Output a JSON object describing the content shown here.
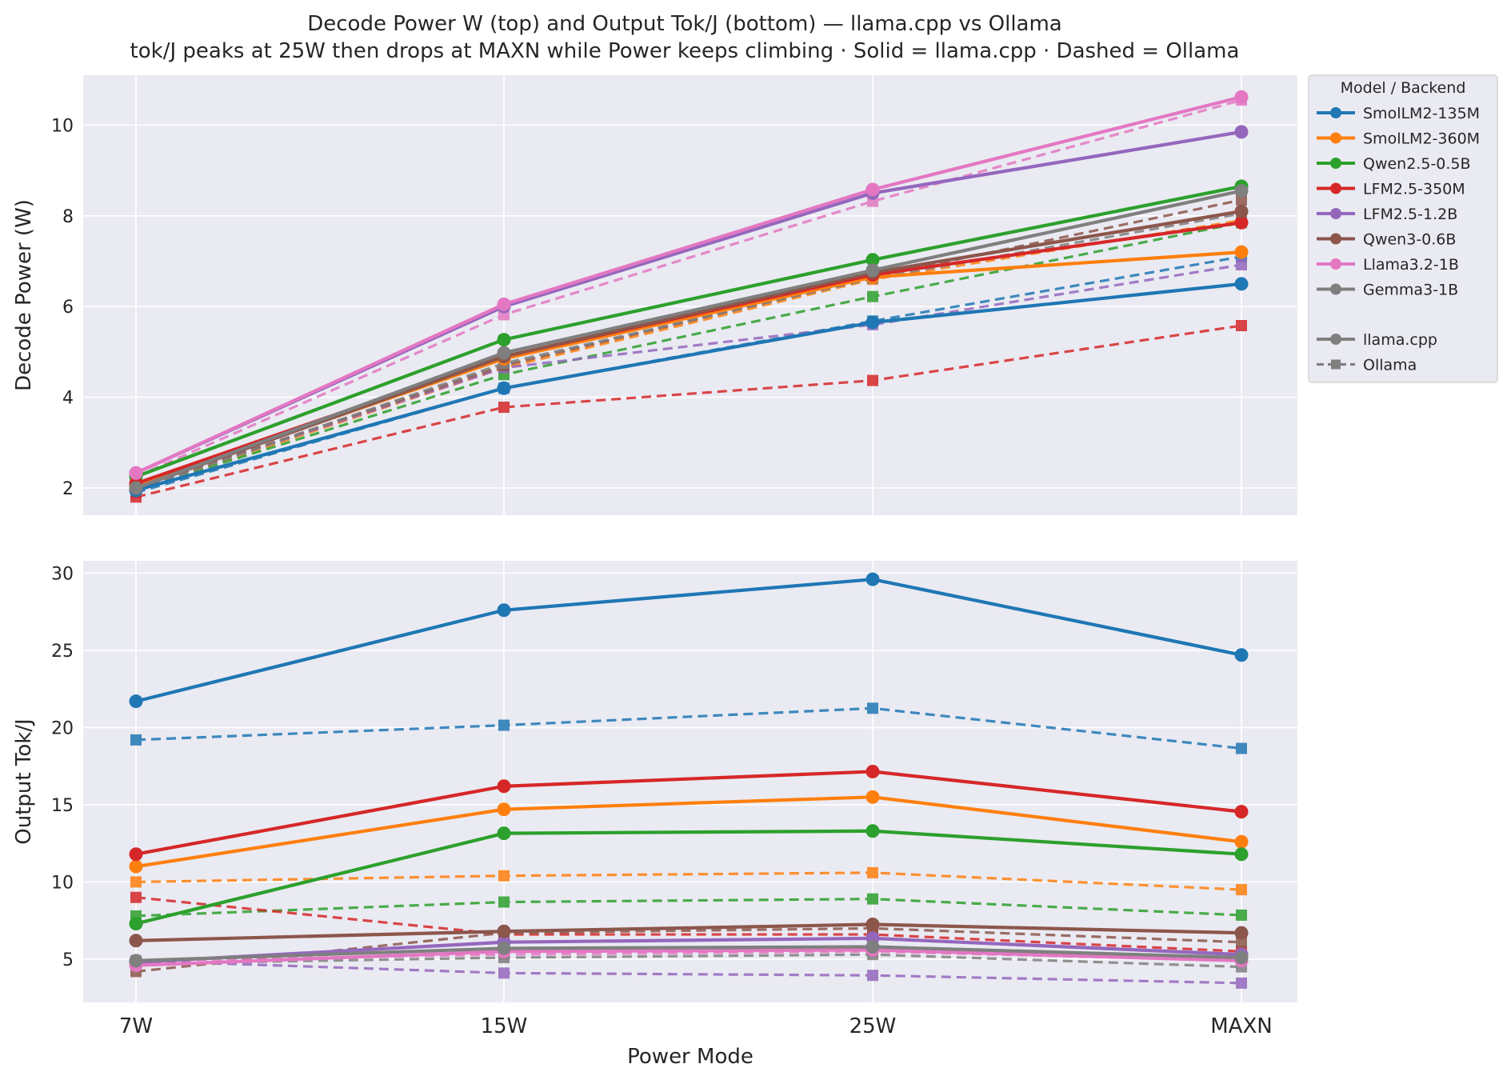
{
  "title": {
    "line1": "Decode Power W (top) and Output Tok/J (bottom) — llama.cpp vs Ollama",
    "line2": "tok/J peaks at 25W then drops at MAXN while Power keeps climbing  ·  Solid = llama.cpp  ·  Dashed = Ollama"
  },
  "legend": {
    "title": "Model  /  Backend",
    "placement": "outside-right",
    "models": [
      {
        "name": "SmolLM2-135M",
        "color": "#1f77b4"
      },
      {
        "name": "SmolLM2-360M",
        "color": "#ff7f0e"
      },
      {
        "name": "Qwen2.5-0.5B",
        "color": "#2ca02c"
      },
      {
        "name": "LFM2.5-350M",
        "color": "#d62728"
      },
      {
        "name": "LFM2.5-1.2B",
        "color": "#9467bd"
      },
      {
        "name": "Qwen3-0.6B",
        "color": "#8c564b"
      },
      {
        "name": "Llama3.2-1B",
        "color": "#e377c2"
      },
      {
        "name": "Gemma3-1B",
        "color": "#7f7f7f"
      }
    ],
    "backends": [
      {
        "name": "llama.cpp",
        "style": "solid",
        "marker": "circle",
        "color": "#7f7f7f"
      },
      {
        "name": "Ollama",
        "style": "dashed",
        "marker": "square",
        "color": "#7f7f7f"
      }
    ]
  },
  "chart_data": [
    {
      "type": "line",
      "panel": "top",
      "ylabel": "Decode Power (W)",
      "xlabel": "",
      "categories": [
        "7W",
        "15W",
        "25W",
        "MAXN"
      ],
      "ylim": [
        1.4,
        11.1
      ],
      "yticks": [
        2,
        4,
        6,
        8,
        10
      ],
      "grid": true,
      "series": [
        {
          "name": "SmolLM2-135M",
          "backend": "llama.cpp",
          "color": "#1f77b4",
          "values": [
            1.95,
            4.2,
            5.65,
            6.5
          ]
        },
        {
          "name": "SmolLM2-360M",
          "backend": "llama.cpp",
          "color": "#ff7f0e",
          "values": [
            2.05,
            4.85,
            6.65,
            7.2
          ]
        },
        {
          "name": "Qwen2.5-0.5B",
          "backend": "llama.cpp",
          "color": "#2ca02c",
          "values": [
            2.25,
            5.27,
            7.03,
            8.65
          ]
        },
        {
          "name": "LFM2.5-350M",
          "backend": "llama.cpp",
          "color": "#d62728",
          "values": [
            2.1,
            4.9,
            6.7,
            7.85
          ]
        },
        {
          "name": "LFM2.5-1.2B",
          "backend": "llama.cpp",
          "color": "#9467bd",
          "values": [
            2.33,
            6.0,
            8.5,
            9.85
          ]
        },
        {
          "name": "Qwen3-0.6B",
          "backend": "llama.cpp",
          "color": "#8c564b",
          "values": [
            2.0,
            4.9,
            6.75,
            8.1
          ]
        },
        {
          "name": "Llama3.2-1B",
          "backend": "llama.cpp",
          "color": "#e377c2",
          "values": [
            2.33,
            6.05,
            8.58,
            10.62
          ]
        },
        {
          "name": "Gemma3-1B",
          "backend": "llama.cpp",
          "color": "#7f7f7f",
          "values": [
            2.0,
            4.98,
            6.8,
            8.55
          ]
        },
        {
          "name": "SmolLM2-135M",
          "backend": "Ollama",
          "color": "#1f77b4",
          "values": [
            1.9,
            4.2,
            5.68,
            7.1
          ]
        },
        {
          "name": "SmolLM2-360M",
          "backend": "Ollama",
          "color": "#ff7f0e",
          "values": [
            1.95,
            4.65,
            6.6,
            7.9
          ]
        },
        {
          "name": "Qwen2.5-0.5B",
          "backend": "Ollama",
          "color": "#2ca02c",
          "values": [
            1.95,
            4.5,
            6.22,
            7.85
          ]
        },
        {
          "name": "LFM2.5-350M",
          "backend": "Ollama",
          "color": "#d62728",
          "values": [
            1.8,
            3.78,
            4.37,
            5.58
          ]
        },
        {
          "name": "LFM2.5-1.2B",
          "backend": "Ollama",
          "color": "#9467bd",
          "values": [
            2.0,
            4.65,
            5.6,
            6.92
          ]
        },
        {
          "name": "Qwen3-0.6B",
          "backend": "Ollama",
          "color": "#8c564b",
          "values": [
            2.0,
            4.7,
            6.65,
            8.35
          ]
        },
        {
          "name": "Llama3.2-1B",
          "backend": "Ollama",
          "color": "#e377c2",
          "values": [
            2.25,
            5.82,
            8.32,
            10.55
          ]
        },
        {
          "name": "Gemma3-1B",
          "backend": "Ollama",
          "color": "#7f7f7f",
          "values": [
            1.95,
            4.75,
            6.62,
            8.05
          ]
        }
      ]
    },
    {
      "type": "line",
      "panel": "bottom",
      "ylabel": "Output Tok/J",
      "xlabel": "Power Mode",
      "categories": [
        "7W",
        "15W",
        "25W",
        "MAXN"
      ],
      "ylim": [
        2.2,
        30.8
      ],
      "yticks": [
        5,
        10,
        15,
        20,
        25,
        30
      ],
      "grid": true,
      "series": [
        {
          "name": "SmolLM2-135M",
          "backend": "llama.cpp",
          "color": "#1f77b4",
          "values": [
            21.7,
            27.6,
            29.6,
            24.7
          ]
        },
        {
          "name": "SmolLM2-360M",
          "backend": "llama.cpp",
          "color": "#ff7f0e",
          "values": [
            11.0,
            14.7,
            15.5,
            12.6
          ]
        },
        {
          "name": "Qwen2.5-0.5B",
          "backend": "llama.cpp",
          "color": "#2ca02c",
          "values": [
            7.3,
            13.15,
            13.3,
            11.8
          ]
        },
        {
          "name": "LFM2.5-350M",
          "backend": "llama.cpp",
          "color": "#d62728",
          "values": [
            11.8,
            16.2,
            17.15,
            14.55
          ]
        },
        {
          "name": "LFM2.5-1.2B",
          "backend": "llama.cpp",
          "color": "#9467bd",
          "values": [
            4.8,
            6.1,
            6.35,
            5.3
          ]
        },
        {
          "name": "Qwen3-0.6B",
          "backend": "llama.cpp",
          "color": "#8c564b",
          "values": [
            6.2,
            6.8,
            7.25,
            6.7
          ]
        },
        {
          "name": "Llama3.2-1B",
          "backend": "llama.cpp",
          "color": "#e377c2",
          "values": [
            4.6,
            5.5,
            5.6,
            4.9
          ]
        },
        {
          "name": "Gemma3-1B",
          "backend": "llama.cpp",
          "color": "#7f7f7f",
          "values": [
            4.9,
            5.7,
            5.8,
            5.1
          ]
        },
        {
          "name": "SmolLM2-135M",
          "backend": "Ollama",
          "color": "#1f77b4",
          "values": [
            19.2,
            20.15,
            21.25,
            18.65
          ]
        },
        {
          "name": "SmolLM2-360M",
          "backend": "Ollama",
          "color": "#ff7f0e",
          "values": [
            10.0,
            10.4,
            10.6,
            9.5
          ]
        },
        {
          "name": "Qwen2.5-0.5B",
          "backend": "Ollama",
          "color": "#2ca02c",
          "values": [
            7.8,
            8.7,
            8.9,
            7.85
          ]
        },
        {
          "name": "LFM2.5-350M",
          "backend": "Ollama",
          "color": "#d62728",
          "values": [
            9.0,
            6.6,
            6.6,
            5.5
          ]
        },
        {
          "name": "LFM2.5-1.2B",
          "backend": "Ollama",
          "color": "#9467bd",
          "values": [
            4.9,
            4.1,
            3.95,
            3.45
          ]
        },
        {
          "name": "Qwen3-0.6B",
          "backend": "Ollama",
          "color": "#8c564b",
          "values": [
            4.2,
            6.7,
            7.0,
            6.1
          ]
        },
        {
          "name": "Llama3.2-1B",
          "backend": "Ollama",
          "color": "#e377c2",
          "values": [
            4.9,
            5.3,
            5.5,
            4.9
          ]
        },
        {
          "name": "Gemma3-1B",
          "backend": "Ollama",
          "color": "#7f7f7f",
          "values": [
            4.7,
            5.1,
            5.3,
            4.5
          ]
        }
      ]
    }
  ]
}
